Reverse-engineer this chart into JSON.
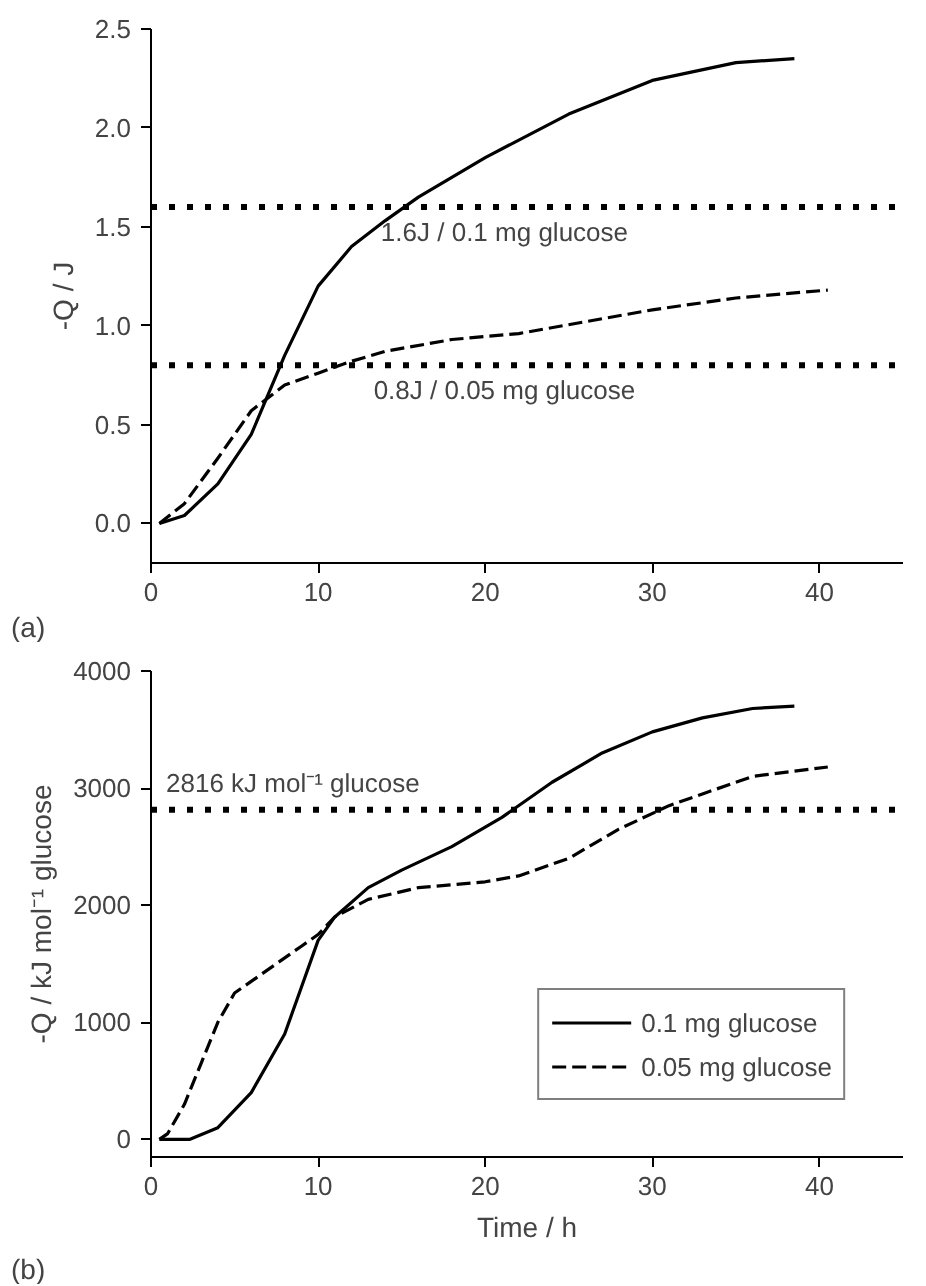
{
  "chart_data": [
    {
      "type": "line",
      "ylabel": "-Q / J",
      "annotations": [
        "(a)"
      ],
      "xlim": [
        0,
        45
      ],
      "ylim": [
        -0.2,
        2.5
      ],
      "xticks": [
        0,
        10,
        20,
        30,
        40
      ],
      "yticks": [
        {
          "value": 0,
          "label": "0.0"
        },
        0.5,
        {
          "value": 1,
          "label": "1.0"
        },
        1.5,
        {
          "value": 2,
          "label": "2.0"
        },
        2.5
      ],
      "grid": false,
      "legend": false,
      "ref_lines": [
        {
          "axis": "y",
          "value": 1.6,
          "label": "1.6J / 0.1 mg glucose",
          "line_style": "dotted",
          "color": "#000000"
        },
        {
          "axis": "y",
          "value": 0.8,
          "label": "0.8J / 0.05 mg glucose",
          "line_style": "dotted",
          "color": "#000000"
        }
      ],
      "series": [
        {
          "color": "#000000",
          "line_style": "solid",
          "x": [
            0.5,
            2,
            4,
            6,
            8,
            10,
            12,
            14,
            16,
            20,
            25,
            30,
            35,
            38.5
          ],
          "values": [
            0,
            0.04,
            0.2,
            0.45,
            0.85,
            1.2,
            1.4,
            1.53,
            1.65,
            1.85,
            2.07,
            2.24,
            2.33,
            2.35
          ]
        },
        {
          "color": "#000000",
          "line_style": "dashed",
          "x": [
            0.5,
            2,
            4,
            6,
            8,
            10,
            12,
            14,
            18,
            22,
            26,
            30,
            35,
            40.5
          ],
          "values": [
            0,
            0.1,
            0.33,
            0.57,
            0.7,
            0.76,
            0.82,
            0.87,
            0.93,
            0.96,
            1.02,
            1.08,
            1.14,
            1.18
          ]
        }
      ]
    },
    {
      "type": "line",
      "xlabel": "Time / h",
      "ylabel": "-Q / kJ mol⁻¹ glucose",
      "annotations": [
        "(b)"
      ],
      "xlim": [
        0,
        45
      ],
      "ylim": [
        -150,
        4000
      ],
      "xticks": [
        0,
        10,
        20,
        30,
        40
      ],
      "yticks": [
        0,
        1000,
        2000,
        3000,
        4000
      ],
      "grid": false,
      "legend": "bottom right",
      "ref_lines": [
        {
          "axis": "y",
          "value": 2816,
          "label": "2816 kJ mol⁻¹ glucose",
          "line_style": "dotted",
          "color": "#000000"
        }
      ],
      "series": [
        {
          "name": "0.1 mg glucose",
          "color": "#000000",
          "line_style": "solid",
          "x": [
            0.5,
            2.3,
            4,
            6,
            8,
            9,
            10,
            11,
            13,
            15,
            18,
            21,
            24,
            27,
            30,
            33,
            36,
            38.5
          ],
          "values": [
            0,
            0,
            100,
            400,
            900,
            1300,
            1700,
            1900,
            2150,
            2300,
            2500,
            2750,
            3050,
            3300,
            3480,
            3600,
            3680,
            3700
          ]
        },
        {
          "name": "0.05 mg glucose",
          "color": "#000000",
          "line_style": "dashed",
          "x": [
            0.5,
            1,
            2,
            3,
            4,
            5,
            7,
            9,
            10,
            11,
            13,
            16,
            20,
            22,
            25,
            28,
            31,
            33,
            36,
            40.5
          ],
          "values": [
            0,
            50,
            300,
            650,
            1000,
            1250,
            1450,
            1650,
            1750,
            1900,
            2050,
            2150,
            2200,
            2250,
            2400,
            2650,
            2850,
            2950,
            3100,
            3180
          ]
        }
      ]
    }
  ]
}
